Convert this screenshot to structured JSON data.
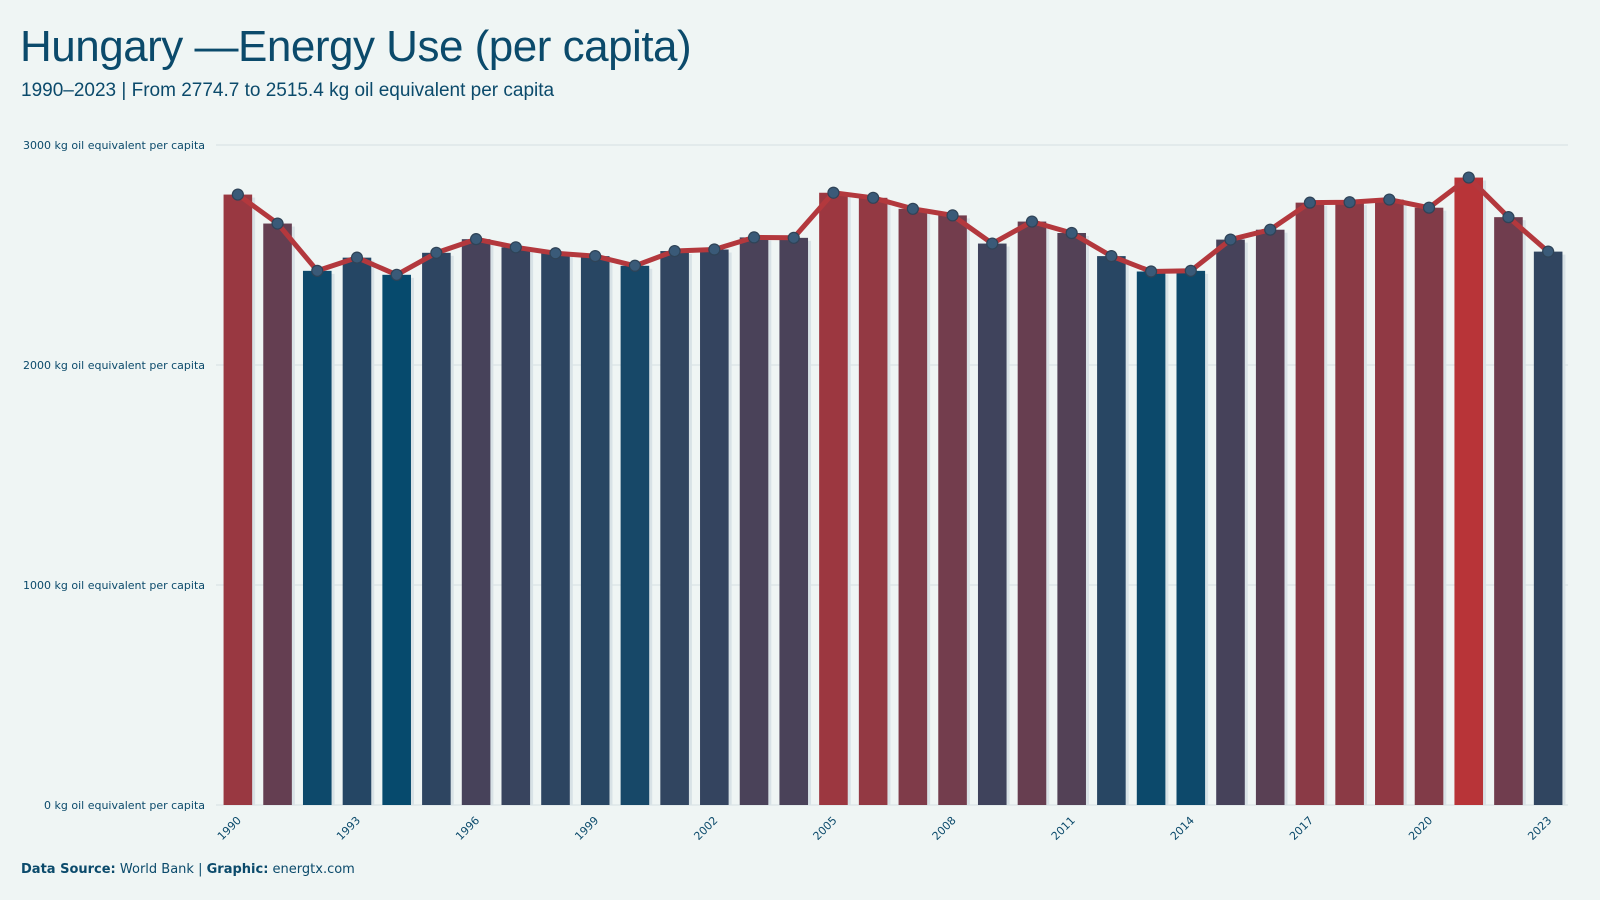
{
  "header": {
    "title": "Hungary —Energy Use (per capita)",
    "subtitle": "1990–2023 | From 2774.7 to 2515.4 kg oil equivalent per capita"
  },
  "footer": {
    "source_label": "Data Source:",
    "source_value": "World Bank",
    "separator": "|",
    "graphic_label": "Graphic:",
    "graphic_value": "energtx.com"
  },
  "colors": {
    "background": "#eff5f4",
    "line": "#b3383d",
    "high": "#b83438",
    "low": "#064a6d",
    "point_fill": "#3a5a78",
    "grid": "#d6e0e2",
    "text": "#0b4a6b"
  },
  "chart_data": {
    "type": "bar",
    "title": "Hungary —Energy Use (per capita)",
    "subtitle": "1990–2023 | From 2774.7 to 2515.4 kg oil equivalent per capita",
    "xlabel": "",
    "ylabel": "",
    "unit": "kg oil equivalent per capita",
    "ylim": [
      0,
      3000
    ],
    "yticks": [
      0,
      1000,
      2000,
      3000
    ],
    "ytick_labels": [
      "0 kg oil equivalent per capita",
      "1000 kg oil equivalent per capita",
      "2000 kg oil equivalent per capita",
      "3000 kg oil equivalent per capita"
    ],
    "xtick_labels": [
      "1990",
      "1993",
      "1996",
      "1999",
      "2002",
      "2005",
      "2008",
      "2011",
      "2014",
      "2017",
      "2020",
      "2023"
    ],
    "grid": true,
    "overlay": "line with markers",
    "categories": [
      1990,
      1991,
      1992,
      1993,
      1994,
      1995,
      1996,
      1997,
      1998,
      1999,
      2000,
      2001,
      2002,
      2003,
      2004,
      2005,
      2006,
      2007,
      2008,
      2009,
      2010,
      2011,
      2012,
      2013,
      2014,
      2015,
      2016,
      2017,
      2018,
      2019,
      2020,
      2021,
      2022,
      2023
    ],
    "values": [
      2774.7,
      2643,
      2428,
      2488,
      2410,
      2510,
      2572,
      2535,
      2508,
      2495,
      2451,
      2518,
      2525,
      2580,
      2578,
      2783,
      2760,
      2710,
      2680,
      2552,
      2652,
      2600,
      2495,
      2425,
      2428,
      2570,
      2615,
      2738,
      2740,
      2752,
      2715,
      2852,
      2672,
      2515.4
    ]
  }
}
